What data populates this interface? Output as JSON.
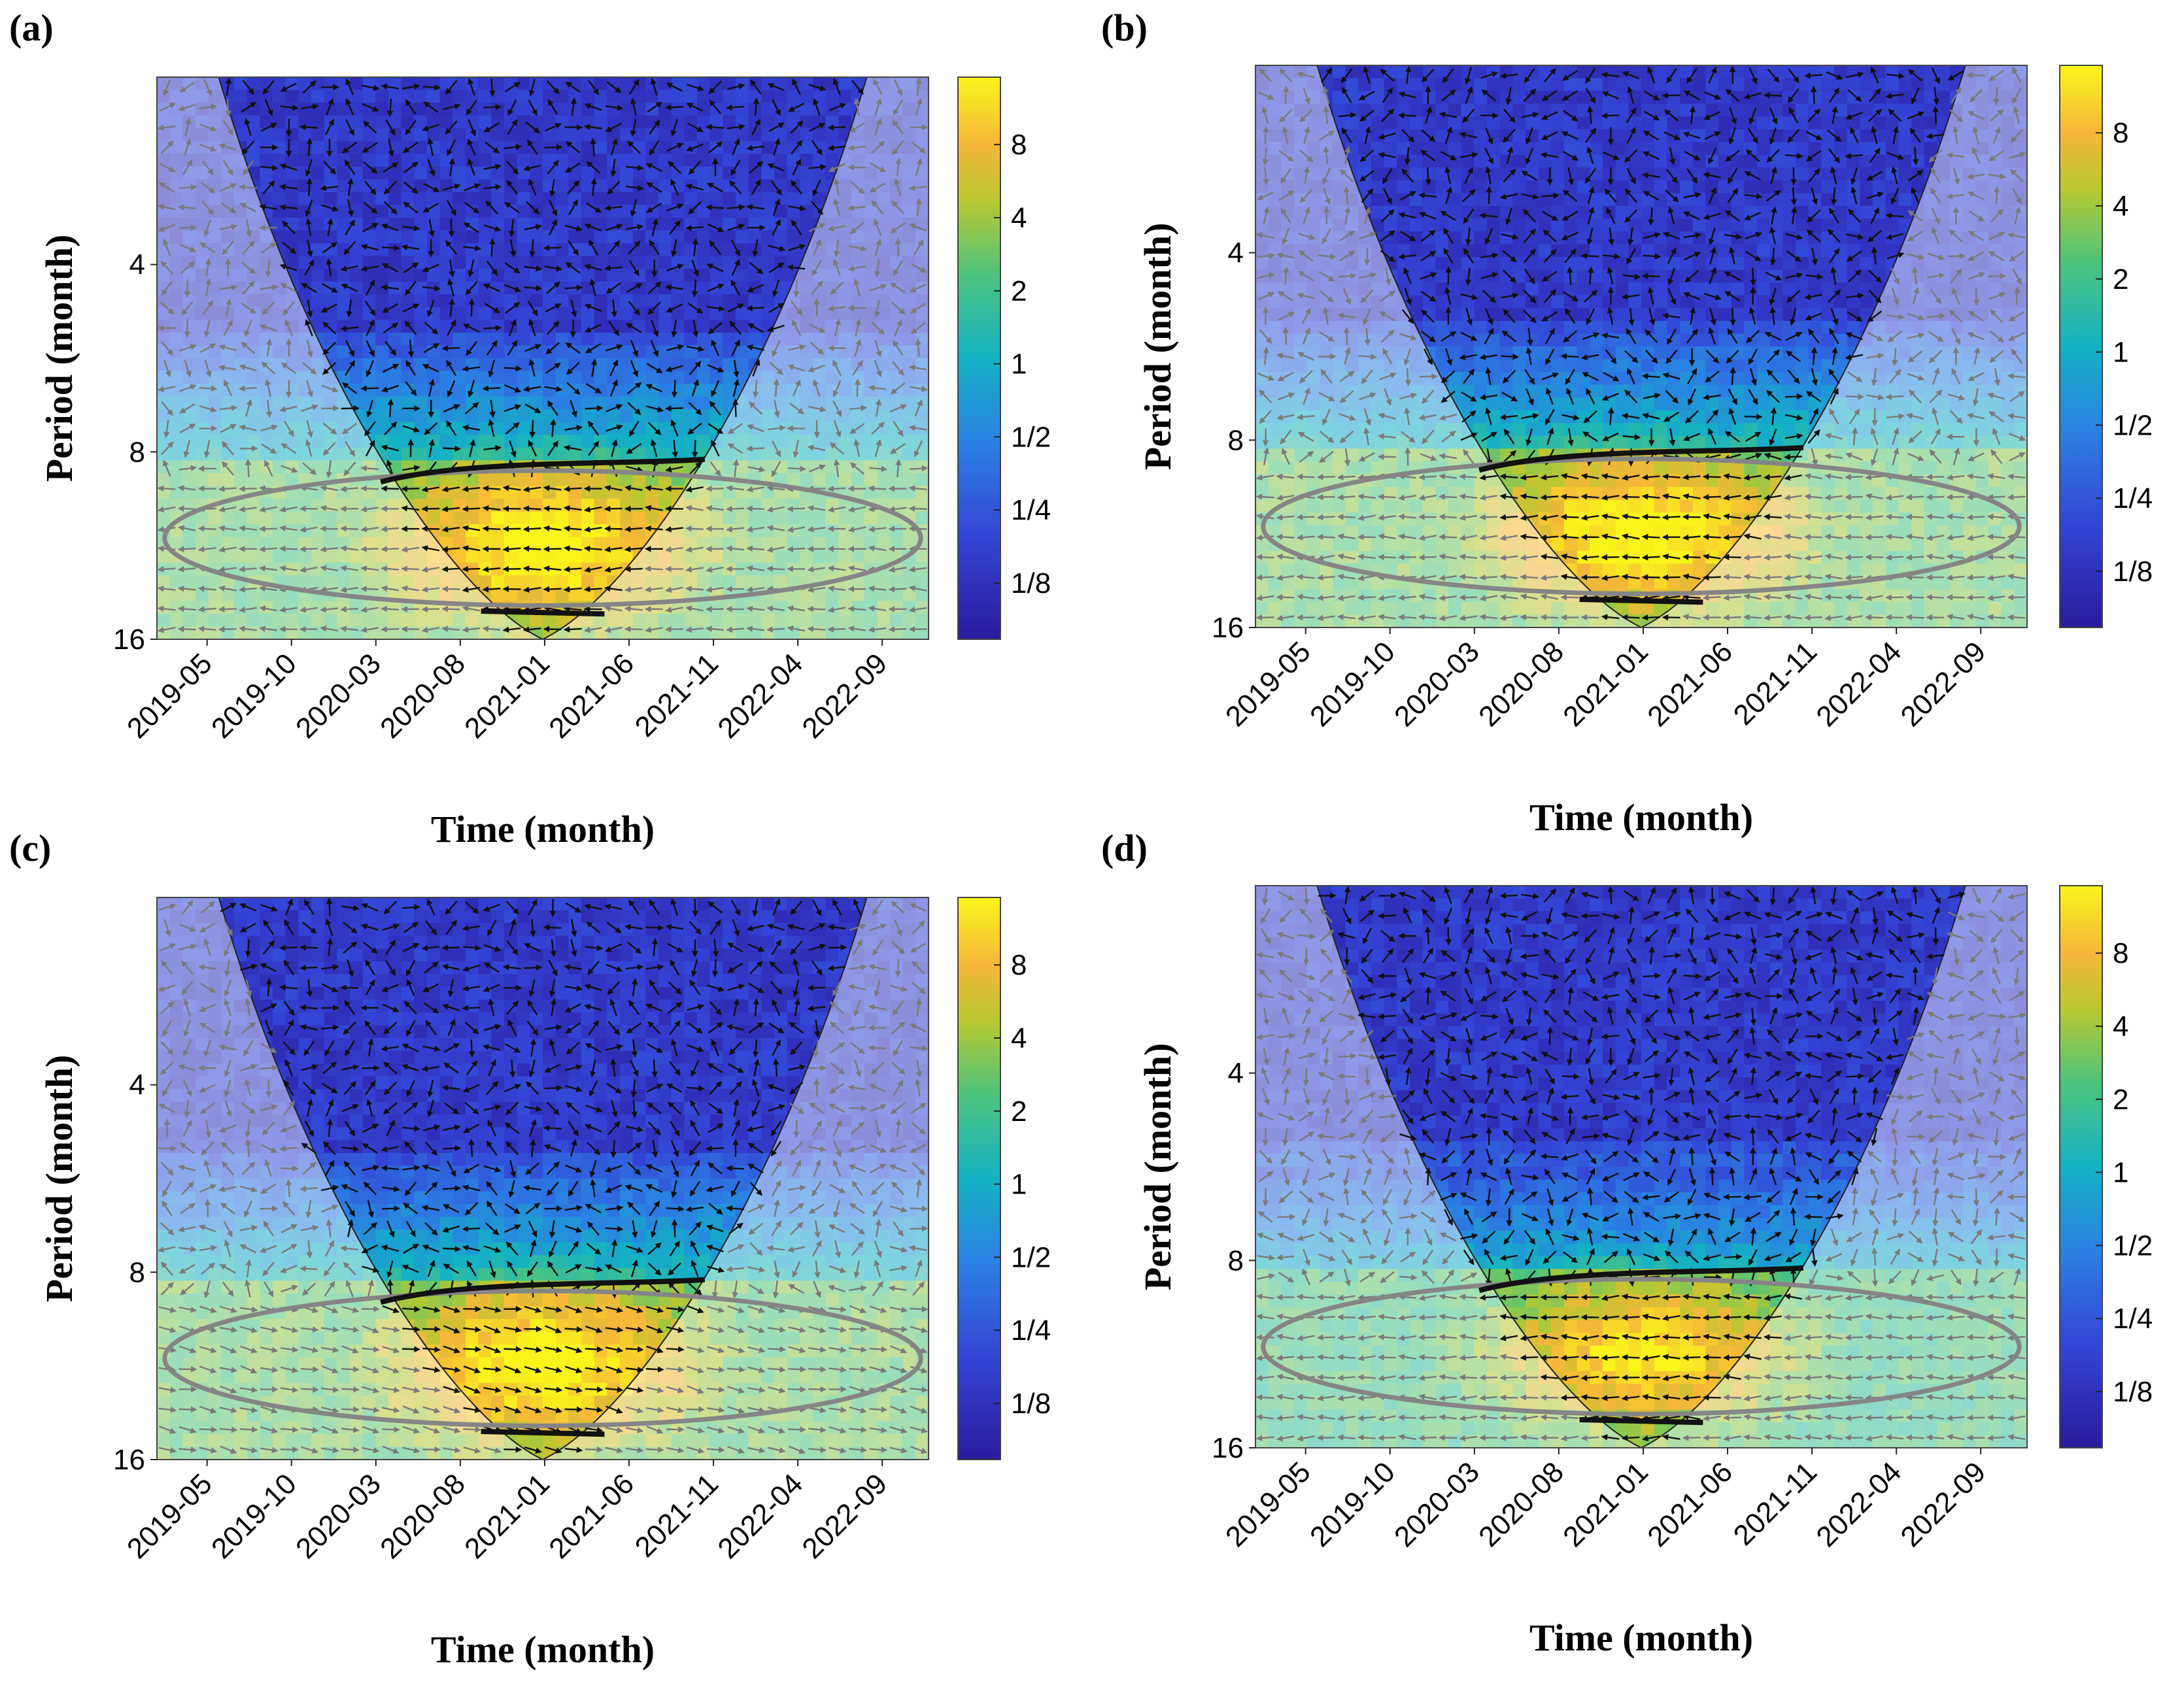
{
  "figure": {
    "description_colors": {
      "low": "#2b1fa0",
      "mid_low": "#2f6fd8",
      "mid": "#1fb1b1",
      "mid_high": "#8fd04a",
      "high": "#f7dd2a",
      "peak": "#f9f01f",
      "orange": "#f4a93a",
      "significance_contour": "#111111",
      "outside_coi_contour": "#888888",
      "arrow_inside": "#111111",
      "arrow_outside": "#777777"
    }
  },
  "chart_data": [
    {
      "id": "a",
      "panel_label": "(a)",
      "type": "heatmap",
      "subtype": "wavelet coherence",
      "xlabel": "Time (month)",
      "ylabel": "Period (month)",
      "x_ticks": [
        "2019-05",
        "2019-10",
        "2020-03",
        "2020-08",
        "2021-01",
        "2021-06",
        "2021-11",
        "2022-04",
        "2022-09"
      ],
      "y_ticks": [
        "4",
        "8",
        "16"
      ],
      "y_range_months": [
        2,
        16
      ],
      "colorbar_ticks": [
        "8",
        "4",
        "2",
        "1",
        "1/2",
        "1/4",
        "1/8"
      ],
      "high_power_band_period": [
        9.5,
        15
      ],
      "high_power_peak_time": "2021-01"
    },
    {
      "id": "b",
      "panel_label": "(b)",
      "type": "heatmap",
      "subtype": "wavelet coherence",
      "xlabel": "Time (month)",
      "ylabel": "Period (month)",
      "x_ticks": [
        "2019-05",
        "2019-10",
        "2020-03",
        "2020-08",
        "2021-01",
        "2021-06",
        "2021-11",
        "2022-04",
        "2022-09"
      ],
      "y_ticks": [
        "4",
        "8",
        "16"
      ],
      "y_range_months": [
        2,
        16
      ],
      "colorbar_ticks": [
        "8",
        "4",
        "2",
        "1",
        "1/2",
        "1/4",
        "1/8"
      ],
      "high_power_band_period": [
        9.5,
        15
      ],
      "high_power_peak_time": "2021-03"
    },
    {
      "id": "c",
      "panel_label": "(c)",
      "type": "heatmap",
      "subtype": "wavelet coherence",
      "xlabel": "Time (month)",
      "ylabel": "Period (month)",
      "x_ticks": [
        "2019-05",
        "2019-10",
        "2020-03",
        "2020-08",
        "2021-01",
        "2021-06",
        "2021-11",
        "2022-04",
        "2022-09"
      ],
      "y_ticks": [
        "4",
        "8",
        "16"
      ],
      "y_range_months": [
        2,
        16
      ],
      "colorbar_ticks": [
        "8",
        "4",
        "2",
        "1",
        "1/2",
        "1/4",
        "1/8"
      ],
      "high_power_band_period": [
        9,
        15
      ],
      "high_power_peak_time": "2021-01"
    },
    {
      "id": "d",
      "panel_label": "(d)",
      "type": "heatmap",
      "subtype": "wavelet coherence",
      "xlabel": "Time (month)",
      "ylabel": "Period (month)",
      "x_ticks": [
        "2019-05",
        "2019-10",
        "2020-03",
        "2020-08",
        "2021-01",
        "2021-06",
        "2021-11",
        "2022-04",
        "2022-09"
      ],
      "y_ticks": [
        "4",
        "8",
        "16"
      ],
      "y_range_months": [
        2,
        16
      ],
      "colorbar_ticks": [
        "8",
        "4",
        "2",
        "1",
        "1/2",
        "1/4",
        "1/8"
      ],
      "high_power_band_period": [
        10,
        15
      ],
      "high_power_peak_time": "2021-02"
    }
  ]
}
